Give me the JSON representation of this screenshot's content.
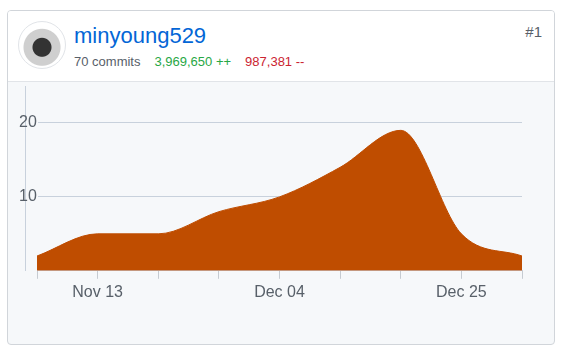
{
  "header": {
    "user": "minyoung529",
    "commits": "70 commits",
    "additions": "3,969,650 ++",
    "deletions": "987,381 --",
    "rank": "#1"
  },
  "chart_data": {
    "type": "area",
    "categories": [
      null,
      "Nov 13",
      null,
      null,
      "Dec 04",
      null,
      null,
      "Dec 25",
      null
    ],
    "values": [
      2,
      5,
      5,
      8,
      10,
      14,
      19,
      5,
      2
    ],
    "color": "#bf4d00",
    "ylim": [
      0,
      25
    ],
    "yticks": [
      10,
      20
    ],
    "grid": true
  }
}
